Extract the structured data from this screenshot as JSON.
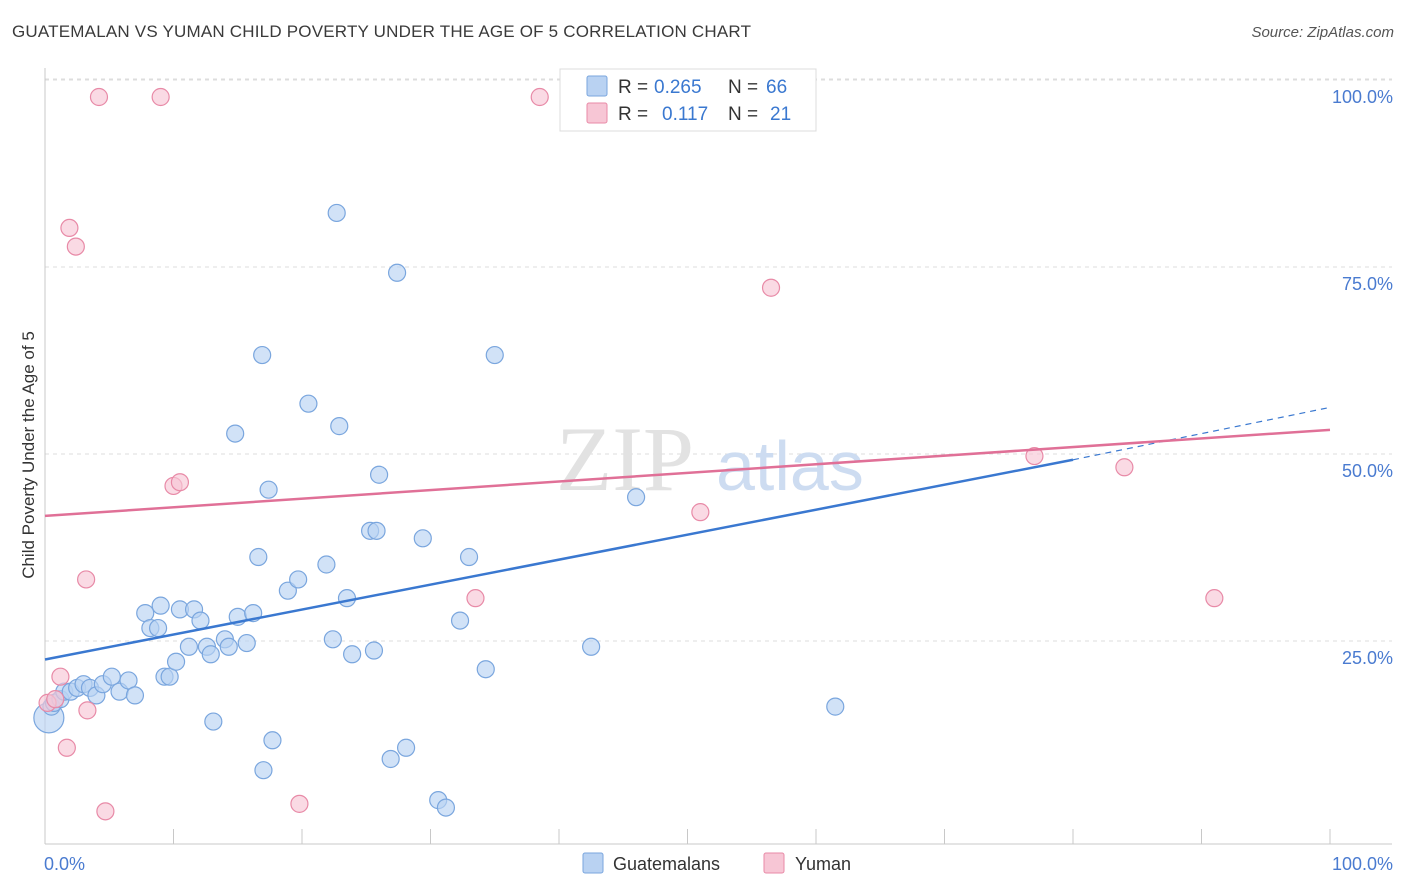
{
  "header": {
    "title": "GUATEMALAN VS YUMAN CHILD POVERTY UNDER THE AGE OF 5 CORRELATION CHART",
    "source": "Source: ZipAtlas.com"
  },
  "watermark": {
    "zip": "ZIP",
    "atlas": "atlas"
  },
  "colors": {
    "blue_fill": "#b9d2f2",
    "blue_stroke": "#7aa6de",
    "blue_line": "#3a78d0",
    "pink_fill": "#f7c6d5",
    "pink_stroke": "#e88aa7",
    "pink_line": "#e07097",
    "grid": "#dddddd",
    "tick_label": "#4a7bd0"
  },
  "legend": {
    "rows": [
      {
        "r_label": "R =",
        "r_value": "0.265",
        "n_label": "N =",
        "n_value": "66"
      },
      {
        "r_label": "R =",
        "r_value": "0.117",
        "n_label": "N =",
        "n_value": "21"
      }
    ]
  },
  "bottom_legend": [
    "Guatemalans",
    "Yuman"
  ],
  "chart_data": {
    "type": "scatter",
    "title": "GUATEMALAN VS YUMAN CHILD POVERTY UNDER THE AGE OF 5 CORRELATION CHART",
    "xlabel": "",
    "ylabel": "Child Poverty Under the Age of 5",
    "xlim": [
      0,
      100
    ],
    "ylim": [
      0,
      100
    ],
    "x_tick_labels": [
      "0.0%",
      "100.0%"
    ],
    "y_tick_labels": [
      "25.0%",
      "50.0%",
      "75.0%",
      "100.0%"
    ],
    "y_ticks": [
      25,
      50,
      75,
      100
    ],
    "grid": true,
    "series": [
      {
        "name": "Guatemalans",
        "R": 0.265,
        "N": 66,
        "trend": {
          "x0": 0,
          "y0": 24.8,
          "x1": 80,
          "y1": 51.5,
          "dash_to_x": 100,
          "dash_to_y": 58.5
        },
        "points": [
          [
            0.3,
            17.0
          ],
          [
            0.5,
            18.5
          ],
          [
            0.7,
            19.0
          ],
          [
            1.2,
            19.5
          ],
          [
            1.5,
            20.5
          ],
          [
            2.0,
            20.5
          ],
          [
            2.5,
            21.0
          ],
          [
            3.0,
            21.5
          ],
          [
            3.5,
            21.0
          ],
          [
            4.0,
            20.0
          ],
          [
            4.5,
            21.5
          ],
          [
            5.2,
            22.5
          ],
          [
            5.8,
            20.5
          ],
          [
            6.5,
            22.0
          ],
          [
            7.0,
            20.0
          ],
          [
            7.8,
            31.0
          ],
          [
            8.2,
            29.0
          ],
          [
            8.8,
            29.0
          ],
          [
            9.3,
            22.5
          ],
          [
            9.7,
            22.5
          ],
          [
            10.2,
            24.5
          ],
          [
            10.5,
            31.5
          ],
          [
            11.2,
            26.5
          ],
          [
            11.6,
            31.5
          ],
          [
            12.1,
            30.0
          ],
          [
            12.6,
            26.5
          ],
          [
            12.9,
            25.5
          ],
          [
            13.1,
            16.5
          ],
          [
            14.0,
            27.5
          ],
          [
            14.3,
            26.5
          ],
          [
            15.0,
            30.5
          ],
          [
            15.7,
            27.0
          ],
          [
            16.2,
            31.0
          ],
          [
            16.6,
            38.5
          ],
          [
            16.9,
            65.5
          ],
          [
            17.4,
            47.5
          ],
          [
            17.7,
            14.0
          ],
          [
            14.8,
            55.0
          ],
          [
            18.9,
            34.0
          ],
          [
            19.7,
            35.5
          ],
          [
            20.5,
            59.0
          ],
          [
            21.9,
            37.5
          ],
          [
            22.4,
            27.5
          ],
          [
            22.7,
            84.5
          ],
          [
            22.9,
            56.0
          ],
          [
            23.5,
            33.0
          ],
          [
            23.9,
            25.5
          ],
          [
            26.0,
            49.5
          ],
          [
            25.3,
            42.0
          ],
          [
            25.8,
            42.0
          ],
          [
            25.6,
            26.0
          ],
          [
            27.4,
            76.5
          ],
          [
            26.9,
            11.5
          ],
          [
            28.1,
            13.0
          ],
          [
            29.4,
            41.0
          ],
          [
            30.6,
            6.0
          ],
          [
            31.2,
            5.0
          ],
          [
            32.3,
            30.0
          ],
          [
            33.0,
            38.5
          ],
          [
            34.3,
            23.5
          ],
          [
            35.0,
            65.5
          ],
          [
            42.5,
            26.5
          ],
          [
            46.0,
            46.5
          ],
          [
            61.5,
            18.5
          ],
          [
            17.0,
            10.0
          ],
          [
            9.0,
            32.0
          ]
        ]
      },
      {
        "name": "Yuman",
        "R": 0.117,
        "N": 21,
        "trend": {
          "x0": 0,
          "y0": 44.0,
          "x1": 100,
          "y1": 55.5
        },
        "points": [
          [
            0.2,
            19.0
          ],
          [
            1.2,
            22.5
          ],
          [
            1.7,
            13.0
          ],
          [
            1.9,
            82.5
          ],
          [
            2.4,
            80.0
          ],
          [
            3.2,
            35.5
          ],
          [
            3.3,
            18.0
          ],
          [
            4.2,
            100.0
          ],
          [
            4.7,
            4.5
          ],
          [
            9.0,
            100.0
          ],
          [
            10.0,
            48.0
          ],
          [
            10.5,
            48.5
          ],
          [
            19.8,
            5.5
          ],
          [
            33.5,
            33.0
          ],
          [
            38.5,
            100.0
          ],
          [
            51.0,
            44.5
          ],
          [
            56.5,
            74.5
          ],
          [
            77.0,
            52.0
          ],
          [
            84.0,
            50.5
          ],
          [
            91.0,
            33.0
          ],
          [
            0.8,
            19.5
          ]
        ]
      }
    ]
  }
}
